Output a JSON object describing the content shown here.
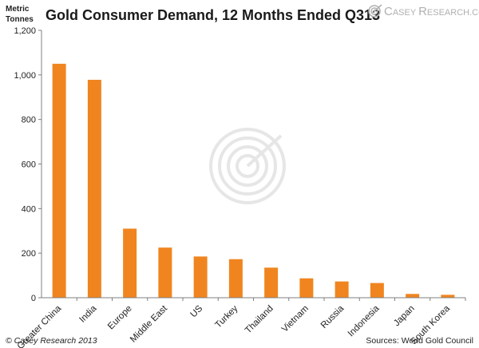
{
  "header": {
    "title": "Gold Consumer Demand, 12 Months Ended Q313",
    "y_unit_line1": "Metric",
    "y_unit_line2": "Tonnes"
  },
  "logo": {
    "brand_first": "C",
    "brand_first_rest": "ASEY",
    "brand_second": "R",
    "brand_second_rest": "ESEARCH",
    "brand_suffix": ".COM",
    "icon": "target-swirl-icon",
    "color": "#b0b0b0"
  },
  "footer": {
    "copyright": "© Casey Research 2013",
    "source": "Sources: World Gold Council"
  },
  "colors": {
    "bar": "#f0851f",
    "grid": "#dcdcdc",
    "axis": "#7f7f7f"
  },
  "chart_data": {
    "type": "bar",
    "title": "Gold Consumer Demand, 12 Months Ended Q313",
    "xlabel": "",
    "ylabel": "Metric Tonnes",
    "ylim": [
      0,
      1200
    ],
    "yticks": [
      0,
      200,
      400,
      600,
      800,
      1000,
      1200
    ],
    "ytick_labels": [
      "0",
      "200",
      "400",
      "600",
      "800",
      "1,000",
      "1,200"
    ],
    "grid": false,
    "legend": "none",
    "categories": [
      "Greater China",
      "India",
      "Europe",
      "Middle East",
      "US",
      "Turkey",
      "Thailand",
      "Vietnam",
      "Russia",
      "Indonesia",
      "Japan",
      "South Korea"
    ],
    "values": [
      1050,
      978,
      310,
      225,
      185,
      173,
      135,
      87,
      73,
      66,
      17,
      13
    ]
  }
}
